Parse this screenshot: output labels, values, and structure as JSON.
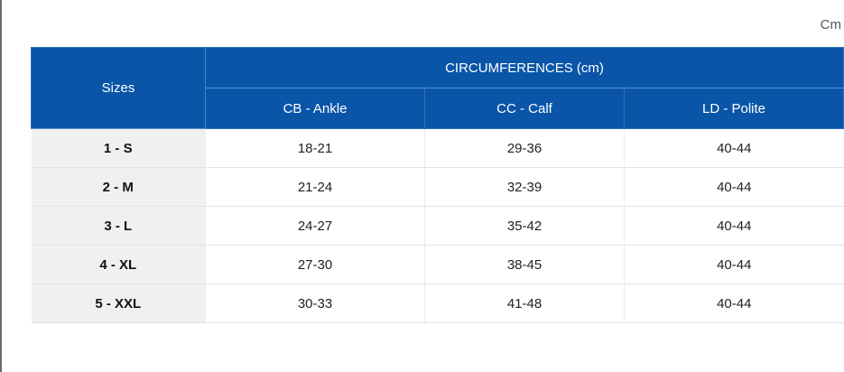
{
  "unit_label": "Cm",
  "table": {
    "header": {
      "sizes": "Sizes",
      "group": "CIRCUMFERENCES (cm)",
      "columns": [
        "CB - Ankle",
        "CC - Calf",
        "LD - Polite"
      ]
    },
    "rows": [
      {
        "size": "1 - S",
        "ankle": "18-21",
        "calf": "29-36",
        "polite": "40-44"
      },
      {
        "size": "2 - M",
        "ankle": "21-24",
        "calf": "32-39",
        "polite": "40-44"
      },
      {
        "size": "3 - L",
        "ankle": "24-27",
        "calf": "35-42",
        "polite": "40-44"
      },
      {
        "size": "4 - XL",
        "ankle": "27-30",
        "calf": "38-45",
        "polite": "40-44"
      },
      {
        "size": "5 - XXL",
        "ankle": "30-33",
        "calf": "41-48",
        "polite": "40-44"
      }
    ]
  },
  "colors": {
    "header_bg": "#0a55a8",
    "size_col_bg": "#f0f0f0"
  }
}
